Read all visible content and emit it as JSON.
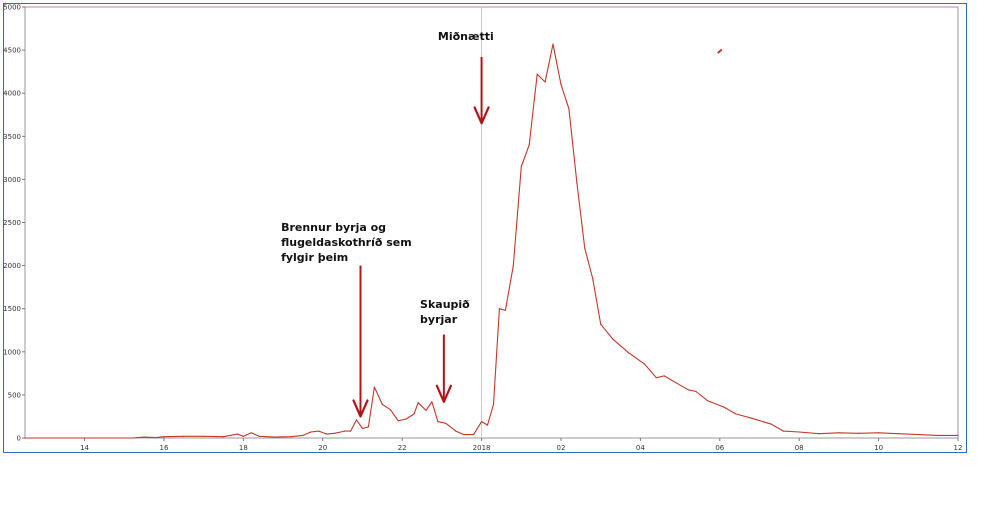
{
  "chart_data": {
    "type": "line",
    "xlabel": "",
    "ylabel": "",
    "xlim": [
      12.5,
      36.0
    ],
    "ylim": [
      0,
      5000
    ],
    "grid": false,
    "y_ticks": [
      0,
      500,
      1000,
      1500,
      2000,
      2500,
      3000,
      3500,
      4000,
      4500,
      5000
    ],
    "x_ticks": [
      {
        "x": 14,
        "label": "14"
      },
      {
        "x": 16,
        "label": "16"
      },
      {
        "x": 18,
        "label": "18"
      },
      {
        "x": 20,
        "label": "20"
      },
      {
        "x": 22,
        "label": "22"
      },
      {
        "x": 24,
        "label": "2018"
      },
      {
        "x": 26,
        "label": "02"
      },
      {
        "x": 28,
        "label": "04"
      },
      {
        "x": 30,
        "label": "06"
      },
      {
        "x": 32,
        "label": "08"
      },
      {
        "x": 34,
        "label": "10"
      },
      {
        "x": 36,
        "label": "12"
      }
    ],
    "vertical_marker_x": 24,
    "series": [
      {
        "color": "#c0392b",
        "points": [
          [
            12.5,
            0
          ],
          [
            14.0,
            0
          ],
          [
            15.2,
            0
          ],
          [
            15.5,
            10
          ],
          [
            15.8,
            5
          ],
          [
            16.0,
            15
          ],
          [
            16.5,
            20
          ],
          [
            17.0,
            20
          ],
          [
            17.5,
            15
          ],
          [
            17.85,
            45
          ],
          [
            18.0,
            20
          ],
          [
            18.2,
            60
          ],
          [
            18.4,
            20
          ],
          [
            18.8,
            10
          ],
          [
            19.2,
            15
          ],
          [
            19.5,
            30
          ],
          [
            19.7,
            70
          ],
          [
            19.9,
            80
          ],
          [
            20.1,
            45
          ],
          [
            20.3,
            55
          ],
          [
            20.55,
            80
          ],
          [
            20.7,
            80
          ],
          [
            20.85,
            210
          ],
          [
            21.0,
            110
          ],
          [
            21.15,
            130
          ],
          [
            21.3,
            590
          ],
          [
            21.5,
            390
          ],
          [
            21.7,
            330
          ],
          [
            21.9,
            200
          ],
          [
            22.1,
            220
          ],
          [
            22.3,
            280
          ],
          [
            22.4,
            410
          ],
          [
            22.6,
            320
          ],
          [
            22.75,
            420
          ],
          [
            22.9,
            190
          ],
          [
            23.1,
            170
          ],
          [
            23.35,
            80
          ],
          [
            23.55,
            40
          ],
          [
            23.8,
            40
          ],
          [
            24.0,
            190
          ],
          [
            24.15,
            150
          ],
          [
            24.3,
            390
          ],
          [
            24.45,
            1500
          ],
          [
            24.6,
            1480
          ],
          [
            24.8,
            2000
          ],
          [
            25.0,
            3150
          ],
          [
            25.2,
            3400
          ],
          [
            25.4,
            4220
          ],
          [
            25.6,
            4130
          ],
          [
            25.8,
            4570
          ],
          [
            26.0,
            4100
          ],
          [
            26.2,
            3820
          ],
          [
            26.4,
            2960
          ],
          [
            26.6,
            2200
          ],
          [
            26.8,
            1850
          ],
          [
            27.0,
            1320
          ],
          [
            27.3,
            1150
          ],
          [
            27.7,
            990
          ],
          [
            28.1,
            860
          ],
          [
            28.4,
            700
          ],
          [
            28.6,
            720
          ],
          [
            28.9,
            640
          ],
          [
            29.2,
            560
          ],
          [
            29.4,
            540
          ],
          [
            29.7,
            430
          ],
          [
            30.1,
            360
          ],
          [
            30.4,
            280
          ],
          [
            30.8,
            230
          ],
          [
            31.3,
            160
          ],
          [
            31.6,
            80
          ],
          [
            32.0,
            70
          ],
          [
            32.5,
            50
          ],
          [
            33.0,
            60
          ],
          [
            33.5,
            55
          ],
          [
            34.0,
            60
          ],
          [
            34.5,
            50
          ],
          [
            35.0,
            40
          ],
          [
            35.5,
            30
          ],
          [
            36.0,
            30
          ]
        ]
      }
    ],
    "annotations": [
      {
        "lines": [
          "Miðnætti"
        ],
        "arrow_to": {
          "x": 24.0,
          "y": 3650
        },
        "arrow_from_y": 4420,
        "text_x": 22.9,
        "text_y": 4620
      },
      {
        "lines": [
          "Brennur byrja og",
          "flugeldaskothríð sem",
          "fylgir þeim"
        ],
        "arrow_to": {
          "x": 20.95,
          "y": 250
        },
        "arrow_from_y": 2000,
        "text_x": 18.95,
        "text_y": 2400
      },
      {
        "lines": [
          "Skaupið",
          "byrjar"
        ],
        "arrow_to": {
          "x": 23.05,
          "y": 420
        },
        "arrow_from_y": 1200,
        "text_x": 22.45,
        "text_y": 1510
      }
    ],
    "stray_mark": {
      "x": 30.0,
      "y": 4490
    }
  }
}
